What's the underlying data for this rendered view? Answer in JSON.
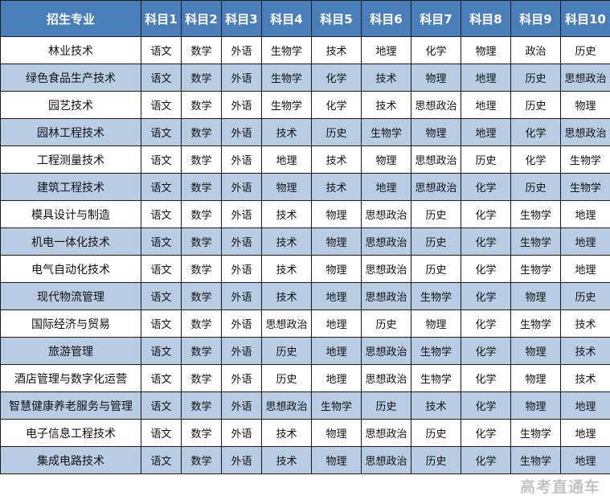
{
  "colors": {
    "header": "#4a7ebb",
    "alt_row": "#b8cce4"
  },
  "headers": [
    "招生专业",
    "科目1",
    "科目2",
    "科目3",
    "科目4",
    "科目5",
    "科目6",
    "科目7",
    "科目8",
    "科目9",
    "科目10"
  ],
  "rows": [
    [
      "林业技术",
      "语文",
      "数学",
      "外语",
      "生物学",
      "技术",
      "地理",
      "化学",
      "物理",
      "政治",
      "历史"
    ],
    [
      "绿色食品生产技术",
      "语文",
      "数学",
      "外语",
      "生物学",
      "化学",
      "技术",
      "物理",
      "地理",
      "历史",
      "思想政治"
    ],
    [
      "园艺技术",
      "语文",
      "数学",
      "外语",
      "生物学",
      "化学",
      "技术",
      "思想政治",
      "地理",
      "历史",
      "物理"
    ],
    [
      "园林工程技术",
      "语文",
      "数学",
      "外语",
      "技术",
      "历史",
      "生物学",
      "物理",
      "地理",
      "化学",
      "思想政治"
    ],
    [
      "工程测量技术",
      "语文",
      "数学",
      "外语",
      "地理",
      "技术",
      "物理",
      "思想政治",
      "历史",
      "化学",
      "生物学"
    ],
    [
      "建筑工程技术",
      "语文",
      "数学",
      "外语",
      "物理",
      "技术",
      "地理",
      "思想政治",
      "化学",
      "历史",
      "生物学"
    ],
    [
      "模具设计与制造",
      "语文",
      "数学",
      "外语",
      "技术",
      "物理",
      "思想政治",
      "历史",
      "化学",
      "生物学",
      "地理"
    ],
    [
      "机电一体化技术",
      "语文",
      "数学",
      "外语",
      "技术",
      "物理",
      "思想政治",
      "历史",
      "化学",
      "生物学",
      "地理"
    ],
    [
      "电气自动化技术",
      "语文",
      "数学",
      "外语",
      "技术",
      "物理",
      "思想政治",
      "历史",
      "化学",
      "生物学",
      "地理"
    ],
    [
      "现代物流管理",
      "语文",
      "数学",
      "外语",
      "技术",
      "地理",
      "思想政治",
      "生物学",
      "化学",
      "物理",
      "历史"
    ],
    [
      "国际经济与贸易",
      "语文",
      "数学",
      "外语",
      "思想政治",
      "地理",
      "历史",
      "物理",
      "化学",
      "生物学",
      "技术"
    ],
    [
      "旅游管理",
      "语文",
      "数学",
      "外语",
      "历史",
      "地理",
      "思想政治",
      "生物学",
      "化学",
      "物理",
      "技术"
    ],
    [
      "酒店管理与数字化运营",
      "语文",
      "数学",
      "外语",
      "历史",
      "地理",
      "思想政治",
      "生物学",
      "化学",
      "物理",
      "技术"
    ],
    [
      "智慧健康养老服务与管理",
      "语文",
      "数学",
      "外语",
      "思想政治",
      "生物学",
      "历史",
      "技术",
      "化学",
      "物理",
      "地理"
    ],
    [
      "电子信息工程技术",
      "语文",
      "数学",
      "外语",
      "技术",
      "物理",
      "思想政治",
      "历史",
      "化学",
      "生物学",
      "地理"
    ],
    [
      "集成电路技术",
      "语文",
      "数学",
      "外语",
      "技术",
      "物理",
      "思想政治",
      "历史",
      "化学",
      "生物学",
      "地理"
    ]
  ],
  "watermark": "高考直通车"
}
